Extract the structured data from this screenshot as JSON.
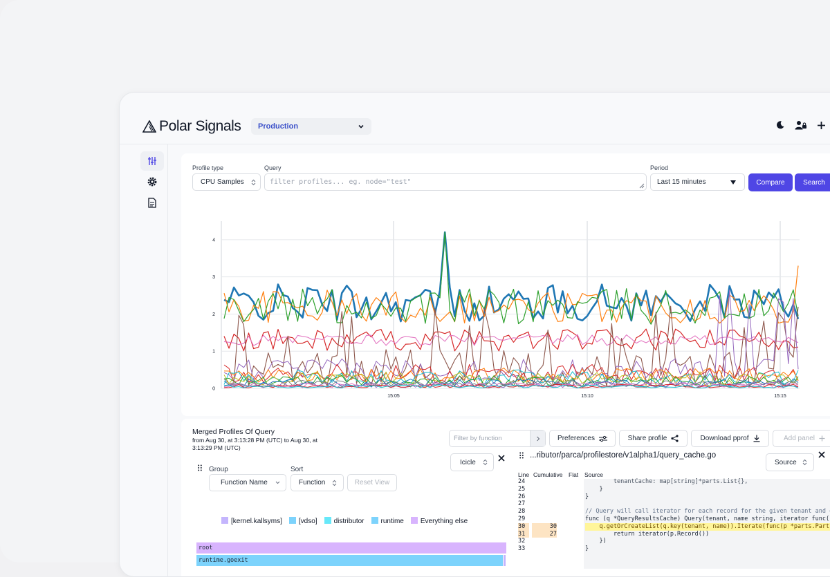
{
  "app": {
    "brand": "Polar Signals",
    "project": "Production"
  },
  "query_bar": {
    "profile_type_label": "Profile type",
    "profile_type_value": "CPU Samples",
    "query_label": "Query",
    "query_placeholder": "filter profiles... eg. node=\"test\"",
    "period_label": "Period",
    "period_value": "Last 15 minutes",
    "compare_label": "Compare",
    "search_label": "Search"
  },
  "chart_data": {
    "type": "line",
    "y_ticks": [
      "0",
      "1",
      "2",
      "3",
      "4"
    ],
    "x_ticks": [
      "15:05",
      "15:10",
      "15:15"
    ],
    "ylim": [
      0,
      4.5
    ],
    "series_count": 18,
    "series_colors": [
      "#1f77b4",
      "#ff7f0e",
      "#2ca02c",
      "#d62728",
      "#9467bd",
      "#8c564b",
      "#e377c2",
      "#7f7f7f",
      "#bcbd22",
      "#17becf"
    ],
    "note": "Many per-series CPU sample lines; peak of 4.2 near 15:06"
  },
  "profile": {
    "title": "Merged Profiles Of Query",
    "range_line1": "from Aug 30, at 3:13:28 PM (UTC) to Aug 30, at",
    "range_line2": "3:13:29 PM (UTC)",
    "filter_placeholder": "Filter by function",
    "preferences_label": "Preferences",
    "share_label": "Share profile",
    "download_label": "Download pprof",
    "add_panel_label": "Add panel"
  },
  "left_panel": {
    "group_label": "Group",
    "group_value": "Function Name",
    "sort_label": "Sort",
    "sort_value": "Function",
    "reset_label": "Reset View",
    "view_value": "Icicle",
    "legend": [
      {
        "name": "[kernel.kallsyms]",
        "color": "#c4b5fd"
      },
      {
        "name": "[vdso]",
        "color": "#7dd3fc"
      },
      {
        "name": "distributor",
        "color": "#67e8f9"
      },
      {
        "name": "runtime",
        "color": "#7dd3fc"
      },
      {
        "name": "Everything else",
        "color": "#d8b4fe"
      }
    ],
    "flame": [
      {
        "label": "root",
        "color": "#d8b4fe"
      },
      {
        "label": "runtime.goexit",
        "color": "#7dd3fc"
      }
    ]
  },
  "right_panel": {
    "file_path": "...ributor/parca/profilestore/v1alpha1/query_cache.go",
    "source_value": "Source",
    "col_line": "Line",
    "col_cumulative": "Cumulative",
    "col_flat": "Flat",
    "col_source": "Source",
    "lines": [
      {
        "n": "24",
        "cum": "",
        "flat": "",
        "code": "        tenantCache: map[string]*parts.List{},"
      },
      {
        "n": "25",
        "cum": "",
        "flat": "",
        "code": "    }"
      },
      {
        "n": "26",
        "cum": "",
        "flat": "",
        "code": "}"
      },
      {
        "n": "27",
        "cum": "",
        "flat": "",
        "code": ""
      },
      {
        "n": "28",
        "cum": "",
        "flat": "",
        "code": "// Query will call iterator for each record for the given tenant and q"
      },
      {
        "n": "29",
        "cum": "",
        "flat": "",
        "code": "func (q *QueryResultsCache) Query(tenant, name string, iterator func(r"
      },
      {
        "n": "30",
        "cum": "30",
        "flat": "",
        "code": "    q.getOrCreateList(q.key(tenant, name)).Iterate(func(p *parts.Part) "
      },
      {
        "n": "31",
        "cum": "27",
        "flat": "",
        "code": "        return iterator(p.Record())"
      },
      {
        "n": "32",
        "cum": "",
        "flat": "",
        "code": "    })"
      },
      {
        "n": "33",
        "cum": "",
        "flat": "",
        "code": "}"
      }
    ]
  }
}
